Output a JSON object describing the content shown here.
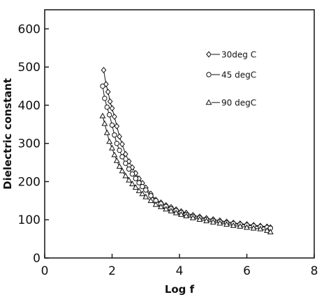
{
  "chart_data": {
    "type": "scatter",
    "xlabel": "Log f",
    "ylabel": "Dielectric constant",
    "xlim": [
      0,
      8
    ],
    "ylim": [
      0,
      650
    ],
    "xticks": [
      0,
      2,
      4,
      6,
      8
    ],
    "yticks": [
      0,
      100,
      200,
      300,
      400,
      500,
      600
    ],
    "grid": false,
    "legend_position": "top-right",
    "series": [
      {
        "name": "30deg C",
        "marker": "diamond",
        "x": [
          1.75,
          1.82,
          1.88,
          1.94,
          2.0,
          2.07,
          2.14,
          2.22,
          2.3,
          2.4,
          2.5,
          2.6,
          2.7,
          2.8,
          2.9,
          3.0,
          3.15,
          3.3,
          3.45,
          3.6,
          3.75,
          3.9,
          4.05,
          4.2,
          4.4,
          4.6,
          4.8,
          5.0,
          5.2,
          5.4,
          5.6,
          5.8,
          6.0,
          6.2,
          6.4,
          6.6,
          6.7
        ],
        "y": [
          492,
          455,
          435,
          410,
          392,
          370,
          345,
          318,
          298,
          272,
          253,
          237,
          222,
          208,
          196,
          184,
          168,
          152,
          145,
          138,
          133,
          127,
          122,
          118,
          112,
          108,
          104,
          101,
          98,
          95,
          92,
          90,
          88,
          86,
          84,
          82,
          80
        ]
      },
      {
        "name": "45 degC",
        "marker": "circle",
        "x": [
          1.72,
          1.78,
          1.85,
          1.92,
          2.0,
          2.07,
          2.14,
          2.22,
          2.3,
          2.4,
          2.5,
          2.6,
          2.7,
          2.8,
          2.9,
          3.0,
          3.15,
          3.3,
          3.45,
          3.6,
          3.75,
          3.9,
          4.05,
          4.2,
          4.4,
          4.6,
          4.8,
          5.0,
          5.2,
          5.4,
          5.6,
          5.8,
          6.0,
          6.2,
          6.4,
          6.6,
          6.7
        ],
        "y": [
          450,
          418,
          395,
          375,
          348,
          322,
          300,
          282,
          265,
          248,
          233,
          220,
          208,
          197,
          187,
          178,
          163,
          150,
          142,
          135,
          129,
          124,
          119,
          114,
          109,
          105,
          101,
          98,
          95,
          92,
          90,
          88,
          86,
          84,
          82,
          80,
          78
        ]
      },
      {
        "name": "90 degC",
        "marker": "triangle",
        "x": [
          1.72,
          1.78,
          1.85,
          1.92,
          2.0,
          2.07,
          2.14,
          2.22,
          2.3,
          2.4,
          2.5,
          2.6,
          2.7,
          2.8,
          2.9,
          3.0,
          3.15,
          3.3,
          3.45,
          3.6,
          3.75,
          3.9,
          4.05,
          4.2,
          4.4,
          4.6,
          4.8,
          5.0,
          5.2,
          5.4,
          5.6,
          5.8,
          6.0,
          6.2,
          6.4,
          6.6,
          6.7
        ],
        "y": [
          372,
          352,
          328,
          305,
          288,
          270,
          255,
          240,
          228,
          215,
          204,
          194,
          185,
          176,
          168,
          160,
          150,
          140,
          134,
          128,
          123,
          118,
          114,
          110,
          105,
          101,
          97,
          94,
          91,
          88,
          85,
          83,
          80,
          78,
          76,
          72,
          68
        ]
      }
    ],
    "legend": [
      {
        "label": "30deg C",
        "marker": "diamond"
      },
      {
        "label": "45 degC",
        "marker": "circle"
      },
      {
        "label": "90 degC",
        "marker": "triangle"
      }
    ]
  }
}
